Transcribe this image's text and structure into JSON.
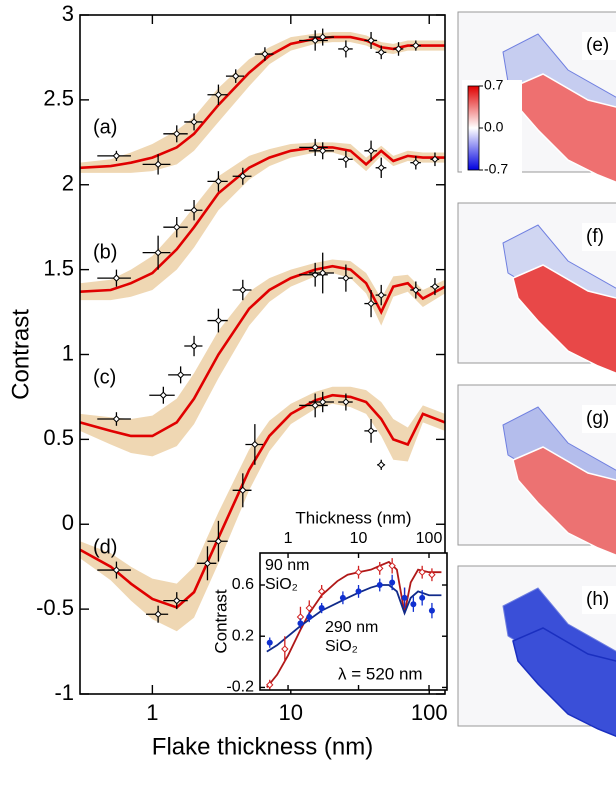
{
  "chart_data": [
    {
      "type": "line",
      "x_label": "Flake thickness (nm)",
      "y_label": "Contrast",
      "xscale": "log",
      "xlim": [
        0.3,
        130
      ],
      "ylim": [
        -1,
        3
      ],
      "xticks": [
        1,
        10,
        100
      ],
      "yticks": [
        -1,
        -0.5,
        0,
        0.5,
        1,
        1.5,
        2,
        2.5,
        3
      ],
      "band_color": "#efd7b3",
      "series": [
        {
          "name": "(a)",
          "color": "#e00000",
          "point_color": "#000000",
          "marker": "diamond",
          "x": [
            0.3,
            0.5,
            0.7,
            1,
            1.5,
            2,
            3,
            5,
            7,
            10,
            15,
            20,
            27,
            35,
            45,
            55,
            70,
            90,
            130
          ],
          "values": [
            2.1,
            2.11,
            2.13,
            2.16,
            2.22,
            2.3,
            2.47,
            2.66,
            2.76,
            2.83,
            2.86,
            2.87,
            2.87,
            2.85,
            2.81,
            2.8,
            2.82,
            2.82,
            2.82
          ],
          "band_halfwidth": [
            0.03,
            0.04,
            0.06,
            0.08,
            0.1,
            0.1,
            0.1,
            0.08,
            0.05,
            0.04,
            0.03,
            0.03,
            0.03,
            0.03,
            0.03,
            0.03,
            0.03,
            0.03,
            0.03
          ],
          "points": {
            "x": [
              0.55,
              1.1,
              1.5,
              2,
              3,
              4,
              6.5,
              15,
              17,
              25,
              38,
              45,
              60,
              80
            ],
            "values": [
              2.17,
              2.12,
              2.3,
              2.37,
              2.53,
              2.64,
              2.77,
              2.85,
              2.87,
              2.8,
              2.85,
              2.78,
              2.8,
              2.82
            ],
            "x_err": [
              0.15,
              0.25,
              0.3,
              0.3,
              0.5,
              0.6,
              1,
              3.5,
              3.5,
              3,
              4,
              4,
              5,
              7
            ],
            "y_err": [
              0.03,
              0.06,
              0.05,
              0.05,
              0.06,
              0.04,
              0.04,
              0.06,
              0.05,
              0.05,
              0.05,
              0.04,
              0.04,
              0.03
            ]
          }
        },
        {
          "name": "(b)",
          "color": "#e00000",
          "point_color": "#000000",
          "marker": "diamond",
          "x": [
            0.3,
            0.5,
            0.7,
            1,
            1.5,
            2,
            3,
            5,
            7,
            10,
            15,
            20,
            27,
            35,
            45,
            55,
            70,
            90,
            130
          ],
          "values": [
            1.37,
            1.38,
            1.42,
            1.48,
            1.62,
            1.75,
            1.95,
            2.1,
            2.16,
            2.2,
            2.22,
            2.22,
            2.2,
            2.12,
            2.2,
            2.14,
            2.17,
            2.16,
            2.16
          ],
          "band_halfwidth": [
            0.05,
            0.06,
            0.08,
            0.1,
            0.12,
            0.12,
            0.1,
            0.07,
            0.05,
            0.04,
            0.03,
            0.03,
            0.04,
            0.04,
            0.03,
            0.03,
            0.03,
            0.03,
            0.03
          ],
          "points": {
            "x": [
              0.55,
              1.1,
              1.5,
              2,
              3,
              4.5,
              15,
              17,
              25,
              38,
              45,
              80,
              110
            ],
            "values": [
              1.45,
              1.6,
              1.75,
              1.85,
              2.02,
              2.05,
              2.22,
              2.2,
              2.15,
              2.2,
              2.1,
              2.13,
              2.15
            ],
            "x_err": [
              0.15,
              0.25,
              0.3,
              0.3,
              0.5,
              0.7,
              3.5,
              3.5,
              3,
              4,
              4,
              7,
              8
            ],
            "y_err": [
              0.05,
              0.1,
              0.06,
              0.06,
              0.06,
              0.05,
              0.05,
              0.05,
              0.05,
              0.06,
              0.06,
              0.04,
              0.04
            ]
          }
        },
        {
          "name": "(c)",
          "color": "#e00000",
          "point_color": "#000000",
          "marker": "diamond",
          "x": [
            0.3,
            0.5,
            0.7,
            1,
            1.5,
            2,
            3,
            5,
            7,
            10,
            15,
            20,
            27,
            35,
            45,
            55,
            70,
            90,
            130
          ],
          "values": [
            0.6,
            0.55,
            0.52,
            0.52,
            0.6,
            0.74,
            1,
            1.27,
            1.38,
            1.45,
            1.5,
            1.52,
            1.5,
            1.42,
            1.25,
            1.4,
            1.42,
            1.33,
            1.4
          ],
          "band_halfwidth": [
            0.05,
            0.08,
            0.1,
            0.12,
            0.14,
            0.15,
            0.14,
            0.1,
            0.07,
            0.05,
            0.04,
            0.04,
            0.05,
            0.06,
            0.08,
            0.06,
            0.05,
            0.05,
            0.04
          ],
          "points": {
            "x": [
              0.55,
              1.2,
              1.6,
              2,
              3,
              4.5,
              15,
              17,
              25,
              38,
              45,
              80,
              110
            ],
            "values": [
              0.62,
              0.76,
              0.88,
              1.05,
              1.2,
              1.38,
              1.47,
              1.48,
              1.45,
              1.3,
              1.35,
              1.38,
              1.4
            ],
            "x_err": [
              0.15,
              0.25,
              0.3,
              0.3,
              0.5,
              0.7,
              3.5,
              3.5,
              3,
              4,
              4,
              7,
              8
            ],
            "y_err": [
              0.04,
              0.05,
              0.05,
              0.06,
              0.07,
              0.06,
              0.07,
              0.12,
              0.08,
              0.08,
              0.06,
              0.05,
              0.05
            ]
          }
        },
        {
          "name": "(d)",
          "color": "#e00000",
          "point_color": "#000000",
          "marker": "diamond",
          "x": [
            0.3,
            0.5,
            0.7,
            1,
            1.5,
            2,
            3,
            5,
            7,
            10,
            15,
            20,
            27,
            35,
            45,
            55,
            70,
            90,
            130
          ],
          "values": [
            -0.15,
            -0.25,
            -0.35,
            -0.44,
            -0.49,
            -0.4,
            -0.08,
            0.32,
            0.52,
            0.65,
            0.73,
            0.76,
            0.75,
            0.72,
            0.62,
            0.5,
            0.47,
            0.65,
            0.6
          ],
          "band_halfwidth": [
            0.05,
            0.08,
            0.1,
            0.12,
            0.14,
            0.15,
            0.15,
            0.12,
            0.09,
            0.06,
            0.05,
            0.05,
            0.06,
            0.07,
            0.1,
            0.12,
            0.1,
            0.05,
            0.05
          ],
          "points": {
            "x": [
              0.55,
              1.1,
              1.5,
              2.5,
              3,
              4.5,
              5.5,
              15,
              17,
              25,
              38,
              45
            ],
            "values": [
              -0.27,
              -0.53,
              -0.45,
              -0.23,
              -0.1,
              0.2,
              0.47,
              0.7,
              0.72,
              0.72,
              0.55,
              0.35
            ],
            "x_err": [
              0.15,
              0.2,
              0.3,
              0.4,
              0.5,
              0.7,
              0.8,
              3.5,
              3.5,
              3,
              4,
              3
            ],
            "y_err": [
              0.05,
              0.05,
              0.05,
              0.1,
              0.12,
              0.1,
              0.12,
              0.07,
              0.06,
              0.05,
              0.07,
              0.03
            ]
          }
        }
      ]
    },
    {
      "type": "line",
      "x_label": "Thickness (nm)",
      "y_label": "Contrast",
      "xscale": "log",
      "xlim": [
        0.4,
        180
      ],
      "ylim": [
        -0.22,
        0.85
      ],
      "xticks": [
        1,
        10,
        100
      ],
      "yticks": [
        -0.2,
        0.2,
        0.6
      ],
      "annotation": "λ = 520 nm",
      "series": [
        {
          "label_lines": [
            "90 nm",
            "SiO₂"
          ],
          "color": "#b01818",
          "point_color": "#d02020",
          "marker": "diamond",
          "x": [
            0.5,
            0.7,
            1,
            1.5,
            2,
            3,
            5,
            7,
            10,
            15,
            20,
            27,
            35,
            45,
            55,
            70,
            100,
            150
          ],
          "values": [
            -0.2,
            -0.1,
            0.05,
            0.25,
            0.38,
            0.52,
            0.63,
            0.68,
            0.7,
            0.72,
            0.75,
            0.78,
            0.72,
            0.38,
            0.62,
            0.72,
            0.7,
            0.7
          ],
          "points": {
            "x": [
              0.55,
              0.9,
              1.5,
              2,
              3,
              10,
              20,
              30,
              45,
              80,
              110
            ],
            "values": [
              -0.18,
              0.1,
              0.35,
              0.42,
              0.55,
              0.7,
              0.73,
              0.75,
              0.5,
              0.7,
              0.68
            ],
            "y_err": [
              0.04,
              0.1,
              0.08,
              0.06,
              0.05,
              0.05,
              0.05,
              0.06,
              0.08,
              0.05,
              0.05
            ]
          }
        },
        {
          "label_lines": [
            "290 nm",
            "SiO₂"
          ],
          "color": "#102a8a",
          "point_color": "#1030d0",
          "marker": "circle",
          "x": [
            0.5,
            0.7,
            1,
            1.5,
            2,
            3,
            5,
            7,
            10,
            15,
            20,
            27,
            35,
            45,
            55,
            70,
            100,
            150
          ],
          "values": [
            0.08,
            0.13,
            0.2,
            0.28,
            0.33,
            0.4,
            0.46,
            0.5,
            0.54,
            0.58,
            0.6,
            0.6,
            0.55,
            0.38,
            0.5,
            0.55,
            0.52,
            0.52
          ],
          "points": {
            "x": [
              0.55,
              1.5,
              2,
              3,
              6,
              10,
              20,
              30,
              45,
              60,
              80,
              110
            ],
            "values": [
              0.15,
              0.3,
              0.35,
              0.42,
              0.5,
              0.55,
              0.6,
              0.62,
              0.5,
              0.45,
              0.5,
              0.4
            ],
            "y_err": [
              0.04,
              0.04,
              0.04,
              0.04,
              0.05,
              0.05,
              0.05,
              0.06,
              0.08,
              0.06,
              0.06,
              0.06
            ]
          }
        }
      ]
    }
  ],
  "image_panels": {
    "labels": [
      "(e)",
      "(f)",
      "(g)",
      "(h)"
    ],
    "colorbar": {
      "lim": [
        -0.7,
        0.7
      ],
      "ticks": [
        0.7,
        {
          "value": 0,
          "label": "0.0"
        },
        -0.7
      ],
      "colors": [
        "#0000e0",
        "#ffffff",
        "#e00000"
      ]
    }
  }
}
